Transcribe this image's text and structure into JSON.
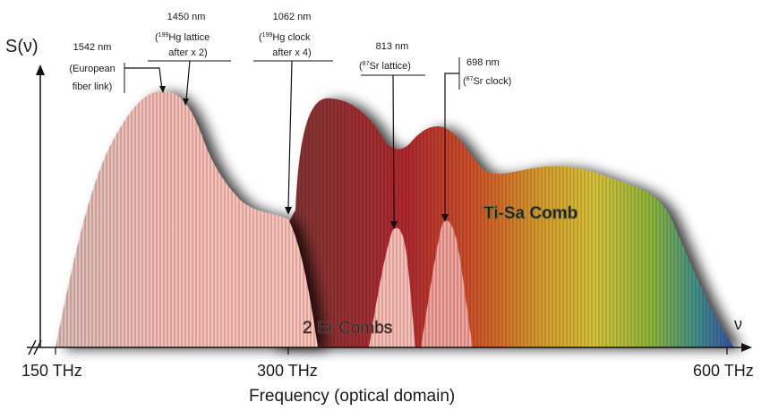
{
  "y_axis_label": "S(ν)",
  "x_axis_symbol": "ν",
  "x_axis_title": "Frequency (optical domain)",
  "ticks": [
    "150 THz",
    "300 THz",
    "600 THz"
  ],
  "comb_labels": {
    "er": "2 Er Combs",
    "tisa": "Ti-Sa Comb"
  },
  "annotations": {
    "a1542": {
      "l1": "1542 nm",
      "l2": "(European",
      "l3": "fiber link)"
    },
    "a1450": {
      "l1": "1450 nm",
      "l2_sup": "199",
      "l2": "Hg lattice",
      "l3": "after x 2)"
    },
    "a1062": {
      "l1": "1062 nm",
      "l2_sup": "199",
      "l2": "Hg clock",
      "l3": "after x 4)"
    },
    "a813": {
      "l1": "813 nm",
      "l2_sup": "87",
      "l2": "Sr lattice)"
    },
    "a698": {
      "l1": "698 nm",
      "l2_sup": "87",
      "l2": "Sr clock)"
    }
  },
  "colors": {
    "er_comb": "#e8a9a0",
    "ti_sa_dark": "#8a3b3b",
    "ti_sa_red": "#c0262b",
    "ti_sa_orange": "#d97a2a",
    "ti_sa_yellow": "#d8c23a",
    "ti_sa_green": "#6fae3a",
    "ti_sa_blue": "#3a5aa8",
    "axis": "#111111"
  }
}
